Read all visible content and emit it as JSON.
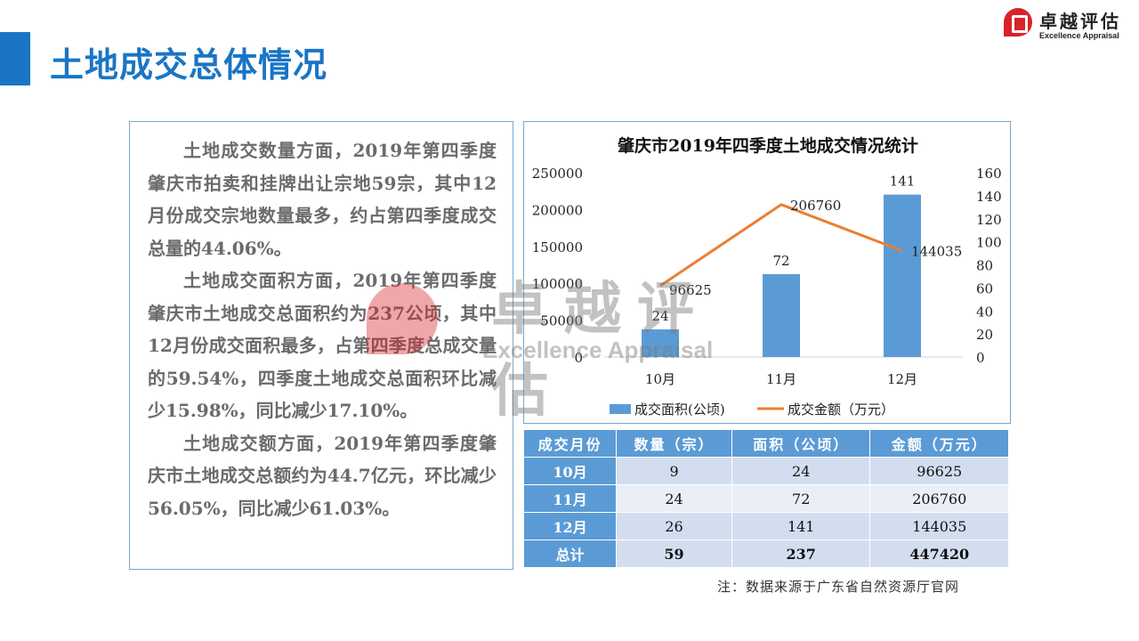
{
  "header": {
    "title": "土地成交总体情况",
    "logo_cn": "卓越评估",
    "logo_en": "Excellence Appraisal"
  },
  "text": {
    "paragraphs": [
      "土地成交数量方面，2019年第四季度肇庆市拍卖和挂牌出让宗地59宗，其中12月份成交宗地数量最多，约占第四季度成交总量的44.06%。",
      "土地成交面积方面，2019年第四季度肇庆市土地成交总面积约为237公顷，其中12月份成交面积最多，占第四季度总成交量的59.54%，四季度土地成交总面积环比减少15.98%，同比减少17.10%。",
      "土地成交额方面，2019年第四季度肇庆市土地成交总额约为44.7亿元，环比减少56.05%，同比减少61.03%。"
    ]
  },
  "chart_data": {
    "type": "bar+line",
    "title": "肇庆市2019年四季度土地成交情况统计",
    "categories": [
      "10月",
      "11月",
      "12月"
    ],
    "series": [
      {
        "name": "成交面积(公顷)",
        "type": "bar",
        "axis": "right",
        "values": [
          24,
          72,
          141
        ],
        "labels": [
          "24",
          "72",
          "141"
        ],
        "color": "#5b9bd5"
      },
      {
        "name": "成交金额（万元）",
        "type": "line",
        "axis": "left",
        "values": [
          96625,
          206760,
          144035
        ],
        "labels": [
          "96625",
          "206760",
          "144035"
        ],
        "color": "#ed7d31"
      }
    ],
    "left_axis": {
      "min": 0,
      "max": 250000,
      "ticks": [
        "0",
        "50000",
        "100000",
        "150000",
        "200000",
        "250000"
      ]
    },
    "right_axis": {
      "min": 0,
      "max": 160,
      "ticks": [
        "0",
        "20",
        "40",
        "60",
        "80",
        "100",
        "120",
        "140",
        "160"
      ]
    },
    "legend": "bottom"
  },
  "table": {
    "headers": [
      "成交月份",
      "数量（宗）",
      "面积（公顷）",
      "金额（万元）"
    ],
    "rows": [
      [
        "10月",
        "9",
        "24",
        "96625"
      ],
      [
        "11月",
        "24",
        "72",
        "206760"
      ],
      [
        "12月",
        "26",
        "141",
        "144035"
      ]
    ],
    "total": [
      "总计",
      "59",
      "237",
      "447420"
    ]
  },
  "note": "注：数据来源于广东省自然资源厅官网"
}
